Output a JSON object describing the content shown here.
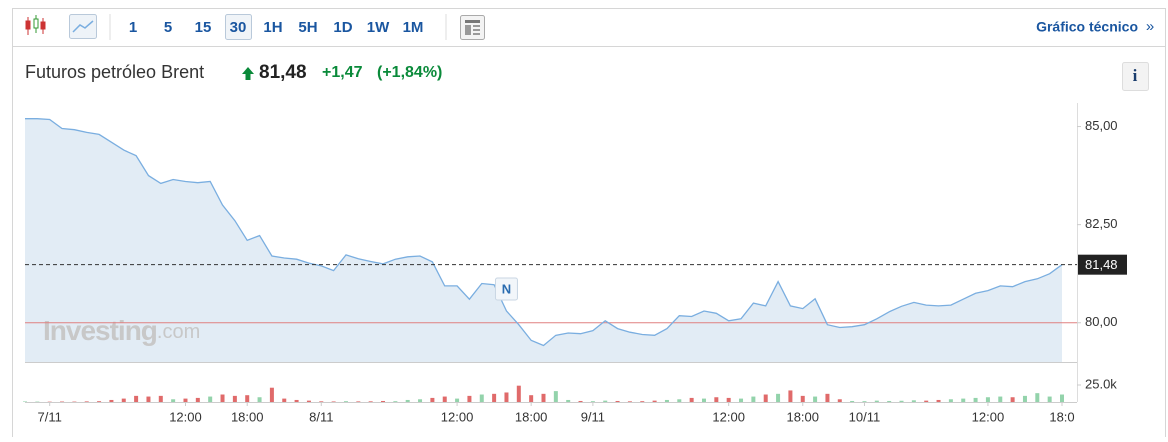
{
  "toolbar": {
    "intervals": [
      "1",
      "5",
      "15",
      "30",
      "1H",
      "5H",
      "1D",
      "1W",
      "1M"
    ],
    "active": "30",
    "link": "Gráfico técnico",
    "link_arrow": "»"
  },
  "header": {
    "name": "Futuros petróleo Brent",
    "price": "81,48",
    "change": "+1,47",
    "change_pct": "(+1,84%)",
    "info": "i"
  },
  "chart_data": {
    "type": "area",
    "watermark": [
      "Investing",
      ".com"
    ],
    "categories": [
      null,
      null,
      "7/11",
      null,
      null,
      null,
      null,
      null,
      null,
      null,
      null,
      null,
      null,
      "12:00",
      null,
      null,
      null,
      null,
      "18:00",
      null,
      null,
      null,
      null,
      null,
      "8/11",
      null,
      null,
      null,
      null,
      null,
      null,
      null,
      null,
      null,
      null,
      "12:00",
      null,
      null,
      null,
      null,
      null,
      "18:00",
      null,
      null,
      null,
      null,
      "9/11",
      null,
      null,
      null,
      null,
      null,
      null,
      null,
      null,
      null,
      null,
      "12:00",
      null,
      null,
      null,
      null,
      null,
      "18:00",
      null,
      null,
      null,
      null,
      "10/11",
      null,
      null,
      null,
      null,
      null,
      null,
      null,
      null,
      null,
      "12:00",
      null,
      null,
      null,
      null,
      null,
      "18:0"
    ],
    "series": [
      {
        "name": "Brent",
        "color": "#7aaee0",
        "fill": "#e2ecf5",
        "values": [
          85.2,
          85.2,
          85.18,
          84.95,
          84.92,
          84.85,
          84.8,
          84.6,
          84.4,
          84.26,
          83.75,
          83.55,
          83.65,
          83.6,
          83.57,
          83.6,
          83.0,
          82.6,
          82.1,
          82.22,
          81.7,
          81.65,
          81.62,
          81.52,
          81.45,
          81.33,
          81.73,
          81.63,
          81.56,
          81.5,
          81.62,
          81.68,
          81.7,
          81.55,
          80.94,
          80.94,
          80.6,
          81.0,
          80.97,
          80.3,
          79.95,
          79.55,
          79.42,
          79.68,
          79.74,
          79.72,
          79.8,
          80.05,
          79.85,
          79.76,
          79.7,
          79.68,
          79.85,
          80.18,
          80.16,
          80.3,
          80.24,
          80.05,
          80.1,
          80.5,
          80.43,
          81.05,
          80.43,
          80.36,
          80.61,
          79.95,
          79.88,
          79.9,
          79.95,
          80.1,
          80.28,
          80.42,
          80.52,
          80.45,
          80.43,
          80.45,
          80.6,
          80.75,
          80.82,
          80.94,
          80.92,
          81.05,
          81.12,
          81.25,
          81.48
        ]
      },
      {
        "name": "Volumen",
        "axis": "y2",
        "up_color": "#93d3ab",
        "down_color": "#e06a6a",
        "values": [
          800,
          600,
          500,
          700,
          600,
          900,
          1200,
          3000,
          5000,
          9000,
          8000,
          9000,
          4000,
          5000,
          6000,
          8000,
          11000,
          9000,
          10000,
          7000,
          21000,
          5000,
          3000,
          2000,
          1000,
          800,
          1200,
          900,
          1000,
          1500,
          1200,
          3000,
          4000,
          6000,
          8000,
          5000,
          9000,
          11000,
          12000,
          14000,
          24000,
          10000,
          12000,
          16000,
          3000,
          1500,
          1200,
          2000,
          1500,
          1000,
          1200,
          2000,
          3000,
          4000,
          6000,
          5000,
          7000,
          6000,
          5000,
          8000,
          11000,
          12000,
          17000,
          9000,
          8000,
          12000,
          4000,
          1500,
          1200,
          2000,
          1500,
          1800,
          2500,
          2000,
          3000,
          4000,
          5000,
          6000,
          7000,
          8000,
          7000,
          9000,
          13000,
          8000,
          11000
        ]
      }
    ],
    "ylim": [
      79,
      85.6
    ],
    "yticks": [
      {
        "value": 80,
        "label": "80,00"
      },
      {
        "value": 82.5,
        "label": "82,50"
      },
      {
        "value": 85,
        "label": "85,00"
      }
    ],
    "y2lim": [
      0,
      58800
    ],
    "y2ticks": [
      {
        "value": 25000,
        "label": "25.0k"
      }
    ],
    "reference_line": 80,
    "reference_color": "#e08080",
    "last_price": {
      "value": 81.48,
      "label": "81,48"
    },
    "annotations": [
      {
        "text": "N",
        "x": 39
      }
    ]
  }
}
